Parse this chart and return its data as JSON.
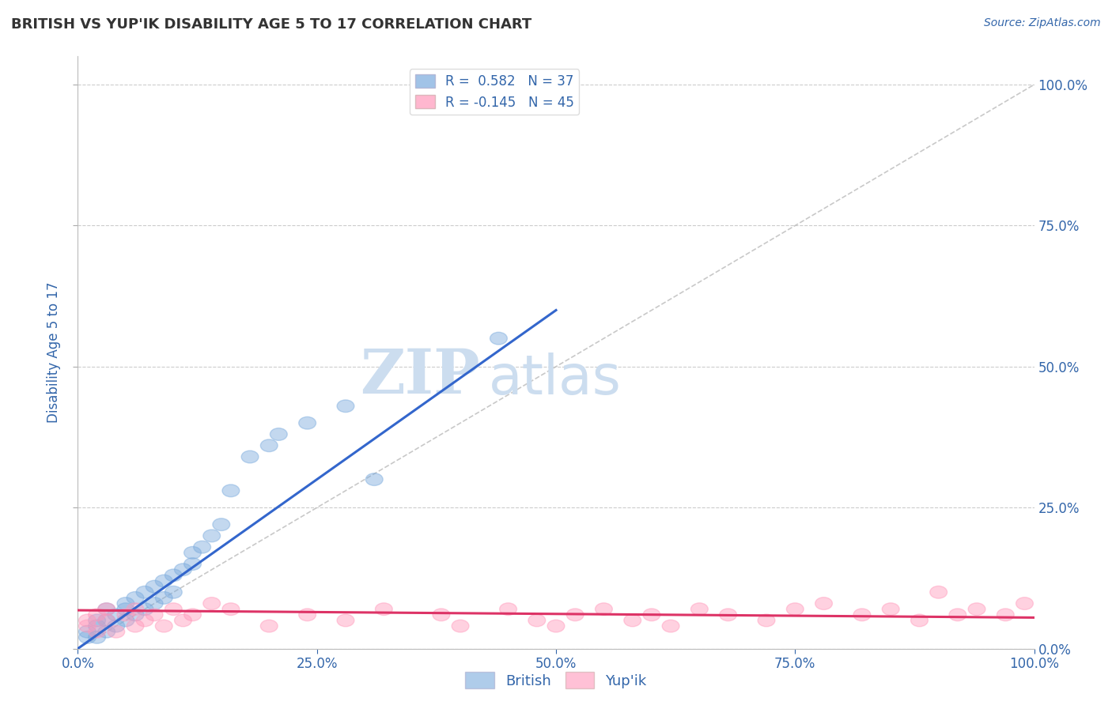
{
  "title": "BRITISH VS YUP'IK DISABILITY AGE 5 TO 17 CORRELATION CHART",
  "source_text": "Source: ZipAtlas.com",
  "ylabel": "Disability Age 5 to 17",
  "british_R": 0.582,
  "british_N": 37,
  "yupik_R": -0.145,
  "yupik_N": 45,
  "british_color": "#7aaadd",
  "yupik_color": "#ff99bb",
  "british_line_color": "#3366cc",
  "yupik_line_color": "#dd3366",
  "diag_line_color": "#bbbbbb",
  "background_color": "#ffffff",
  "grid_color": "#cccccc",
  "axis_label_color": "#3366aa",
  "british_points_x": [
    0.01,
    0.01,
    0.02,
    0.02,
    0.02,
    0.03,
    0.03,
    0.03,
    0.04,
    0.04,
    0.05,
    0.05,
    0.05,
    0.06,
    0.06,
    0.07,
    0.07,
    0.08,
    0.08,
    0.09,
    0.09,
    0.1,
    0.1,
    0.11,
    0.12,
    0.12,
    0.13,
    0.14,
    0.15,
    0.16,
    0.18,
    0.2,
    0.21,
    0.24,
    0.28,
    0.31,
    0.44
  ],
  "british_points_y": [
    0.02,
    0.03,
    0.02,
    0.04,
    0.05,
    0.03,
    0.05,
    0.07,
    0.04,
    0.06,
    0.05,
    0.07,
    0.08,
    0.06,
    0.09,
    0.07,
    0.1,
    0.08,
    0.11,
    0.09,
    0.12,
    0.1,
    0.13,
    0.14,
    0.15,
    0.17,
    0.18,
    0.2,
    0.22,
    0.28,
    0.34,
    0.36,
    0.38,
    0.4,
    0.43,
    0.3,
    0.55
  ],
  "yupik_points_x": [
    0.01,
    0.01,
    0.02,
    0.02,
    0.03,
    0.03,
    0.04,
    0.05,
    0.06,
    0.06,
    0.07,
    0.08,
    0.09,
    0.1,
    0.11,
    0.12,
    0.14,
    0.16,
    0.2,
    0.24,
    0.28,
    0.32,
    0.38,
    0.4,
    0.45,
    0.48,
    0.5,
    0.52,
    0.55,
    0.58,
    0.6,
    0.62,
    0.65,
    0.68,
    0.72,
    0.75,
    0.78,
    0.82,
    0.85,
    0.88,
    0.9,
    0.92,
    0.94,
    0.97,
    0.99
  ],
  "yupik_points_y": [
    0.04,
    0.05,
    0.03,
    0.06,
    0.05,
    0.07,
    0.03,
    0.06,
    0.04,
    0.07,
    0.05,
    0.06,
    0.04,
    0.07,
    0.05,
    0.06,
    0.08,
    0.07,
    0.04,
    0.06,
    0.05,
    0.07,
    0.06,
    0.04,
    0.07,
    0.05,
    0.04,
    0.06,
    0.07,
    0.05,
    0.06,
    0.04,
    0.07,
    0.06,
    0.05,
    0.07,
    0.08,
    0.06,
    0.07,
    0.05,
    0.1,
    0.06,
    0.07,
    0.06,
    0.08
  ],
  "british_line_x": [
    0.0,
    0.5
  ],
  "british_line_y": [
    0.0,
    0.6
  ],
  "yupik_line_x": [
    0.0,
    1.0
  ],
  "yupik_line_y": [
    0.068,
    0.055
  ],
  "xlim": [
    0.0,
    1.0
  ],
  "ylim": [
    0.0,
    1.05
  ],
  "yticks": [
    0.0,
    0.25,
    0.5,
    0.75,
    1.0
  ],
  "ytick_labels": [
    "0.0%",
    "25.0%",
    "50.0%",
    "75.0%",
    "100.0%"
  ],
  "xticks": [
    0.0,
    0.25,
    0.5,
    0.75,
    1.0
  ],
  "xtick_labels": [
    "0.0%",
    "25.0%",
    "50.0%",
    "75.0%",
    "100.0%"
  ],
  "watermark_zip": "ZIP",
  "watermark_atlas": "atlas",
  "watermark_color": "#ccddef",
  "figsize": [
    14.06,
    8.92
  ],
  "dpi": 100
}
